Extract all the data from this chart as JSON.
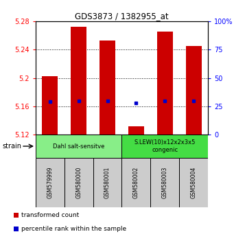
{
  "title": "GDS3873 / 1382955_at",
  "samples": [
    "GSM579999",
    "GSM580000",
    "GSM580001",
    "GSM580002",
    "GSM580003",
    "GSM580004"
  ],
  "bar_bottoms": [
    5.12,
    5.12,
    5.12,
    5.12,
    5.12,
    5.12
  ],
  "bar_tops": [
    5.202,
    5.272,
    5.253,
    5.132,
    5.265,
    5.245
  ],
  "blue_dots": [
    5.167,
    5.168,
    5.168,
    5.165,
    5.168,
    5.168
  ],
  "ylim": [
    5.12,
    5.28
  ],
  "yticks_left": [
    5.12,
    5.16,
    5.2,
    5.24,
    5.28
  ],
  "yticks_right": [
    0,
    25,
    50,
    75,
    100
  ],
  "yticks_right_labels": [
    "0",
    "25",
    "50",
    "75",
    "100%"
  ],
  "bar_color": "#cc0000",
  "dot_color": "#0000cc",
  "groups": [
    {
      "label": "Dahl salt-sensitve",
      "start": 0,
      "end": 3,
      "color": "#88ee88"
    },
    {
      "label": "S.LEW(10)x12x2x3x5\ncongenic",
      "start": 3,
      "end": 6,
      "color": "#44dd44"
    }
  ],
  "strain_label": "strain",
  "legend_items": [
    {
      "color": "#cc0000",
      "label": "transformed count"
    },
    {
      "color": "#0000cc",
      "label": "percentile rank within the sample"
    }
  ],
  "sample_box_color": "#cccccc",
  "fig_width": 3.41,
  "fig_height": 3.54,
  "dpi": 100
}
